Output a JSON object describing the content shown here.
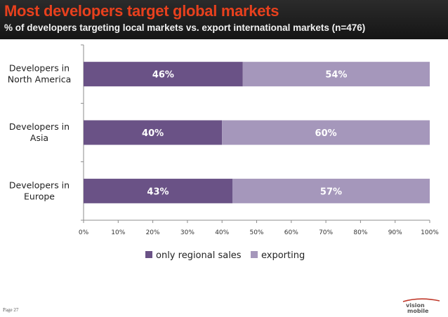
{
  "header": {
    "title": "Most developers target global markets",
    "subtitle": "% of developers targeting local markets vs. export international markets (n=476)"
  },
  "chart_data": {
    "type": "bar",
    "orientation": "horizontal",
    "stacked": true,
    "categories": [
      [
        "Developers in",
        "North America"
      ],
      [
        "Developers in",
        "Asia"
      ],
      [
        "Developers in",
        "Europe"
      ]
    ],
    "series": [
      {
        "name": "only regional sales",
        "values": [
          46,
          40,
          43
        ],
        "labels": [
          "46%",
          "40%",
          "43%"
        ],
        "color": "#6a5286"
      },
      {
        "name": "exporting",
        "values": [
          54,
          60,
          57
        ],
        "labels": [
          "54%",
          "60%",
          "57%"
        ],
        "color": "#a597bb"
      }
    ],
    "xlim": [
      0,
      100
    ],
    "ticks": [
      "0%",
      "10%",
      "20%",
      "30%",
      "40%",
      "50%",
      "60%",
      "70%",
      "80%",
      "90%",
      "100%"
    ],
    "grid": false,
    "legend": "bottom"
  },
  "footer": {
    "page_number": "Page 27",
    "logo_text": "vision mobile",
    "logo_color": "#c0392b"
  }
}
